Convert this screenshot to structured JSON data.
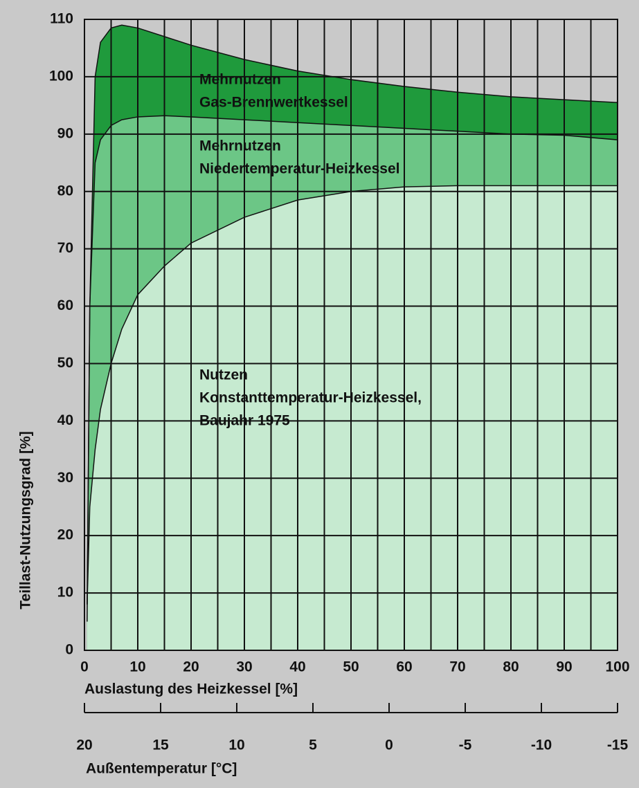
{
  "chart_data": {
    "type": "area",
    "x": [
      0.5,
      1,
      2,
      3,
      5,
      7,
      10,
      15,
      20,
      30,
      40,
      50,
      60,
      70,
      80,
      90,
      100
    ],
    "series": [
      {
        "name": "Mehrnutzen Gas-Brennwertkessel",
        "color": "#1f9a3c",
        "values": [
          5,
          60,
          100,
          106,
          108.5,
          109,
          108.5,
          107,
          105.5,
          103,
          101,
          99.5,
          98.3,
          97.3,
          96.5,
          96,
          95.5
        ]
      },
      {
        "name": "Mehrnutzen Niedertemperatur-Heizkessel",
        "color": "#6cc686",
        "values": [
          8,
          60,
          85,
          89,
          91.5,
          92.5,
          93,
          93.2,
          93,
          92.5,
          92,
          91.5,
          91,
          90.5,
          90,
          89.8,
          89
        ]
      },
      {
        "name": "Nutzen Konstanttemperatur-Heizkessel, Baujahr 1975",
        "color": "#c6ead0",
        "values": [
          8,
          25,
          35,
          42,
          50,
          56,
          62,
          67,
          71,
          75.5,
          78.5,
          80,
          80.8,
          81,
          81,
          81,
          81
        ]
      }
    ],
    "annotations": [
      [
        "Mehrnutzen",
        "Gas-Brennwertkessel"
      ],
      [
        "Mehrnutzen",
        "Niedertemperatur-Heizkessel"
      ],
      [
        "Nutzen",
        "Konstanttemperatur-Heizkessel,",
        "Baujahr 1975"
      ]
    ],
    "xlabel": "Auslastung des Heizkessel [%]",
    "ylabel": "Teillast-Nutzungsgrad [%]",
    "x2label": "Außentemperatur [°C]",
    "xlim": [
      0,
      100
    ],
    "xticks": [
      0,
      10,
      20,
      30,
      40,
      50,
      60,
      70,
      80,
      90,
      100
    ],
    "x_minor_ticks": [
      5,
      15,
      25,
      35,
      45,
      55,
      65,
      75,
      85,
      95
    ],
    "ylim": [
      0,
      110
    ],
    "yticks": [
      0,
      10,
      20,
      30,
      40,
      50,
      60,
      70,
      80,
      90,
      100,
      110
    ],
    "x2lim": [
      20,
      -15
    ],
    "x2ticks": [
      20,
      15,
      10,
      5,
      0,
      -5,
      -10,
      -15
    ],
    "grid": true
  }
}
